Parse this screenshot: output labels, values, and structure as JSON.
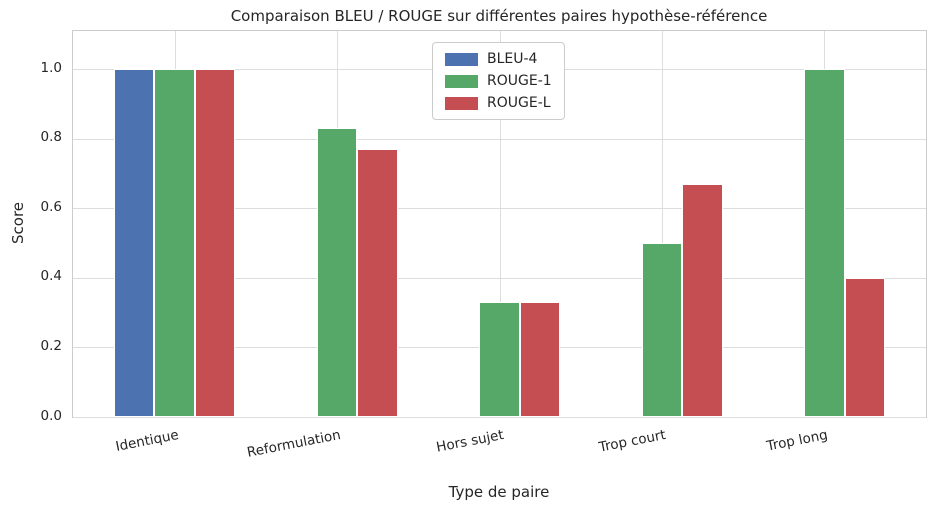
{
  "chart_data": {
    "type": "bar",
    "title": "Comparaison BLEU / ROUGE sur différentes paires hypothèse-référence",
    "xlabel": "Type de paire",
    "ylabel": "Score",
    "categories": [
      "Identique",
      "Reformulation",
      "Hors sujet",
      "Trop court",
      "Trop long"
    ],
    "series": [
      {
        "name": "BLEU-4",
        "color": "#4C72B0",
        "values": [
          1.0,
          0.0,
          0.0,
          0.0,
          0.0
        ]
      },
      {
        "name": "ROUGE-1",
        "color": "#55A868",
        "values": [
          1.0,
          0.83,
          0.33,
          0.5,
          1.0
        ]
      },
      {
        "name": "ROUGE-L",
        "color": "#C44E52",
        "values": [
          1.0,
          0.77,
          0.33,
          0.67,
          0.4
        ]
      }
    ],
    "yticks": [
      0.0,
      0.2,
      0.4,
      0.6,
      0.8,
      1.0
    ],
    "ylim": [
      0,
      1.11
    ],
    "xlim_units": [
      -0.625,
      4.625
    ],
    "bar_width_units": 0.25,
    "grid": true,
    "legend_position": "upper center",
    "grid_color": "#dddddd",
    "spine_color": "#cccccc",
    "text_color": "#262626"
  }
}
